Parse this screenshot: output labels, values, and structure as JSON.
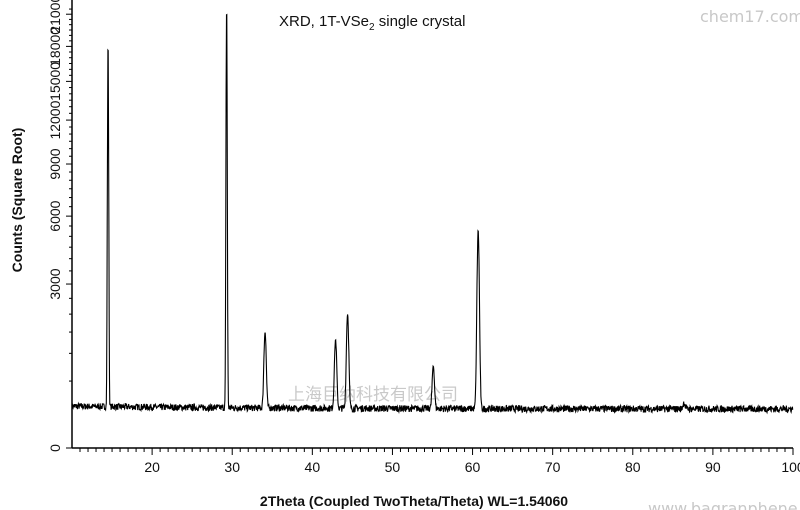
{
  "chart_data": {
    "type": "line",
    "title": "",
    "annotation": {
      "prefix": "XRD, 1T-VSe",
      "subscript": "2",
      "suffix": " single crystal"
    },
    "xlabel": "2Theta (Coupled TwoTheta/Theta) WL=1.54060",
    "ylabel": "Counts (Square Root)",
    "xlim": [
      10,
      100
    ],
    "ylim": [
      0,
      22000
    ],
    "y_scale": "square root",
    "grid": false,
    "x_ticks": [
      20,
      30,
      40,
      50,
      60,
      70,
      80,
      90,
      100
    ],
    "y_ticks": [
      0,
      3000,
      6000,
      9000,
      12000,
      15000,
      18000,
      21000
    ],
    "baseline": 170,
    "peaks": [
      {
        "x": 14.5,
        "y": 18500
      },
      {
        "x": 29.3,
        "y": 22000
      },
      {
        "x": 34.1,
        "y": 1500
      },
      {
        "x": 42.9,
        "y": 1300
      },
      {
        "x": 44.4,
        "y": 2000
      },
      {
        "x": 55.1,
        "y": 750
      },
      {
        "x": 60.7,
        "y": 5300
      },
      {
        "x": 86.4,
        "y": 230
      }
    ],
    "color": "#000000"
  },
  "watermarks": {
    "top_right": "chem17.com",
    "center": "上海巨纳科技有限公司",
    "bottom_right": "www.bagranphene.com"
  }
}
